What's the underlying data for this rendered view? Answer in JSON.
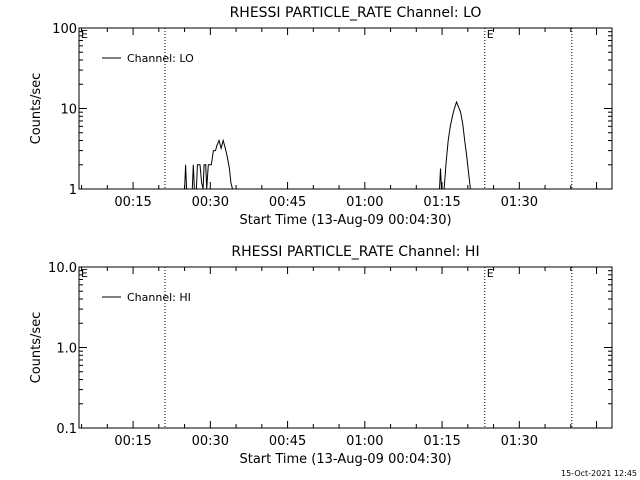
{
  "footer": {
    "timestamp": "15-Oct-2021 12:45"
  },
  "chart_data": [
    {
      "type": "line",
      "title": "RHESSI PARTICLE_RATE Channel: LO",
      "xlabel": "Start Time (13-Aug-09 00:04:30)",
      "ylabel": "Counts/sec",
      "yscale": "log",
      "ylim": [
        1,
        100
      ],
      "xlim_minutes": [
        4.5,
        108
      ],
      "xticks": [
        {
          "m": 15,
          "label": "00:15"
        },
        {
          "m": 30,
          "label": "00:30"
        },
        {
          "m": 45,
          "label": "00:45"
        },
        {
          "m": 60,
          "label": "01:00"
        },
        {
          "m": 75,
          "label": "01:15"
        },
        {
          "m": 90,
          "label": "01:30"
        }
      ],
      "yticks": [
        {
          "v": 1,
          "label": "1"
        },
        {
          "v": 10,
          "label": "10"
        },
        {
          "v": 100,
          "label": "100"
        }
      ],
      "markers": [
        {
          "m": 21.2,
          "label": ""
        },
        {
          "m": 83.3,
          "label": "E"
        },
        {
          "m": 100.2,
          "label": ""
        }
      ],
      "corner_marker": "E",
      "legend": "top-left",
      "grid": false,
      "series": [
        {
          "name": "Channel: LO",
          "color": "#000000",
          "points": [
            [
              25.0,
              1
            ],
            [
              25.2,
              2
            ],
            [
              25.4,
              1
            ],
            [
              26.5,
              1
            ],
            [
              26.7,
              2
            ],
            [
              26.9,
              1
            ],
            [
              27.3,
              1
            ],
            [
              27.5,
              2
            ],
            [
              28.0,
              2
            ],
            [
              28.3,
              1.2
            ],
            [
              28.6,
              1
            ],
            [
              28.8,
              2
            ],
            [
              29.1,
              2
            ],
            [
              29.3,
              1
            ],
            [
              29.6,
              2
            ],
            [
              30.2,
              2
            ],
            [
              30.6,
              3
            ],
            [
              31.0,
              3
            ],
            [
              31.3,
              3.5
            ],
            [
              31.7,
              4
            ],
            [
              32.1,
              3.2
            ],
            [
              32.5,
              4
            ],
            [
              32.9,
              3.2
            ],
            [
              33.3,
              2.5
            ],
            [
              33.7,
              1.8
            ],
            [
              34.0,
              1.2
            ],
            [
              34.3,
              1
            ],
            [
              74.5,
              1
            ],
            [
              74.7,
              1.8
            ],
            [
              74.9,
              1
            ],
            [
              75.4,
              1
            ],
            [
              75.8,
              2.2
            ],
            [
              76.2,
              4
            ],
            [
              76.6,
              6
            ],
            [
              77.0,
              8
            ],
            [
              77.4,
              10
            ],
            [
              77.8,
              12
            ],
            [
              78.2,
              10.5
            ],
            [
              78.6,
              9
            ],
            [
              79.0,
              6.5
            ],
            [
              79.4,
              4
            ],
            [
              79.8,
              2.5
            ],
            [
              80.2,
              1.5
            ],
            [
              80.5,
              1
            ]
          ]
        }
      ]
    },
    {
      "type": "line",
      "title": "RHESSI PARTICLE_RATE Channel: HI",
      "xlabel": "Start Time (13-Aug-09 00:04:30)",
      "ylabel": "Counts/sec",
      "yscale": "log",
      "ylim": [
        0.1,
        10
      ],
      "xlim_minutes": [
        4.5,
        108
      ],
      "xticks": [
        {
          "m": 15,
          "label": "00:15"
        },
        {
          "m": 30,
          "label": "00:30"
        },
        {
          "m": 45,
          "label": "00:45"
        },
        {
          "m": 60,
          "label": "01:00"
        },
        {
          "m": 75,
          "label": "01:15"
        },
        {
          "m": 90,
          "label": "01:30"
        }
      ],
      "yticks": [
        {
          "v": 0.1,
          "label": "0.1"
        },
        {
          "v": 1,
          "label": "1.0"
        },
        {
          "v": 10,
          "label": "10.0"
        }
      ],
      "markers": [
        {
          "m": 21.2,
          "label": ""
        },
        {
          "m": 83.3,
          "label": "E"
        },
        {
          "m": 100.2,
          "label": ""
        }
      ],
      "corner_marker": "E",
      "legend": "top-left",
      "grid": false,
      "series": [
        {
          "name": "Channel: HI",
          "color": "#000000",
          "points": []
        }
      ]
    }
  ]
}
